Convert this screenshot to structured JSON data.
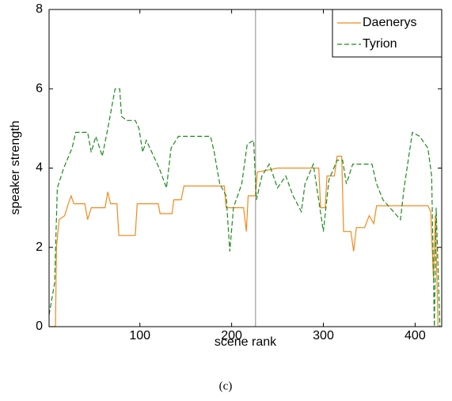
{
  "chart_data": {
    "type": "line",
    "xlabel": "scene rank",
    "ylabel": "speaker strength",
    "caption": "(c)",
    "xlim": [
      1,
      429
    ],
    "ylim": [
      0,
      8
    ],
    "xticks": [
      100,
      200,
      300,
      400
    ],
    "yticks": [
      0,
      2,
      4,
      6,
      8
    ],
    "vline": {
      "x": 226,
      "color": "#b0b0b0"
    },
    "legend": "upper right",
    "series": [
      {
        "name": "Daenerys",
        "color": "#f28a1c",
        "dash": "solid",
        "x": [
          1,
          8,
          9,
          12,
          18,
          22,
          25,
          28,
          40,
          43,
          47,
          62,
          65,
          68,
          75,
          77,
          95,
          97,
          120,
          122,
          135,
          137,
          145,
          148,
          192,
          194,
          213,
          216,
          218,
          226,
          228,
          240,
          250,
          295,
          297,
          302,
          304,
          312,
          315,
          320,
          322,
          330,
          333,
          336,
          345,
          350,
          355,
          358,
          414,
          417,
          420,
          422,
          425
        ],
        "values": [
          0,
          0,
          2.0,
          2.7,
          2.8,
          3.1,
          3.3,
          3.1,
          3.1,
          2.7,
          3.0,
          3.0,
          3.4,
          3.1,
          3.1,
          2.3,
          2.3,
          3.1,
          3.1,
          2.85,
          2.85,
          3.2,
          3.2,
          3.55,
          3.55,
          3.0,
          3.0,
          2.4,
          3.3,
          3.3,
          3.9,
          3.95,
          4.0,
          4.0,
          3.0,
          3.0,
          3.8,
          3.8,
          4.3,
          4.3,
          2.4,
          2.4,
          1.9,
          2.5,
          2.5,
          2.8,
          2.6,
          3.05,
          3.05,
          2.9,
          1.2,
          2.8,
          0
        ]
      },
      {
        "name": "Tyrion",
        "color": "#1e8a1e",
        "dash": "dashed",
        "x": [
          1,
          7,
          10,
          17,
          26,
          30,
          43,
          47,
          52,
          59,
          65,
          69,
          73,
          78,
          80,
          86,
          95,
          99,
          103,
          107,
          121,
          129,
          134,
          142,
          177,
          181,
          187,
          194,
          198,
          202,
          211,
          217,
          224,
          227,
          233,
          241,
          250,
          259,
          267,
          276,
          280,
          289,
          300,
          306,
          315,
          321,
          325,
          332,
          353,
          358,
          365,
          384,
          388,
          397,
          405,
          414,
          418,
          421,
          423,
          427
        ],
        "values": [
          0.3,
          1.1,
          3.5,
          4.0,
          4.5,
          4.9,
          4.9,
          4.4,
          4.8,
          4.3,
          5.0,
          5.5,
          6.0,
          6.0,
          5.3,
          5.2,
          5.2,
          5.0,
          4.4,
          4.7,
          4.0,
          3.5,
          4.5,
          4.8,
          4.8,
          4.4,
          3.6,
          3.3,
          1.9,
          3.0,
          3.6,
          4.6,
          4.7,
          3.2,
          3.8,
          4.1,
          3.5,
          3.8,
          3.3,
          2.9,
          3.6,
          4.1,
          2.4,
          3.7,
          4.2,
          4.2,
          3.6,
          4.1,
          4.1,
          3.6,
          3.2,
          2.7,
          3.5,
          4.9,
          4.8,
          4.5,
          3.8,
          0,
          3.0,
          0
        ]
      }
    ]
  }
}
